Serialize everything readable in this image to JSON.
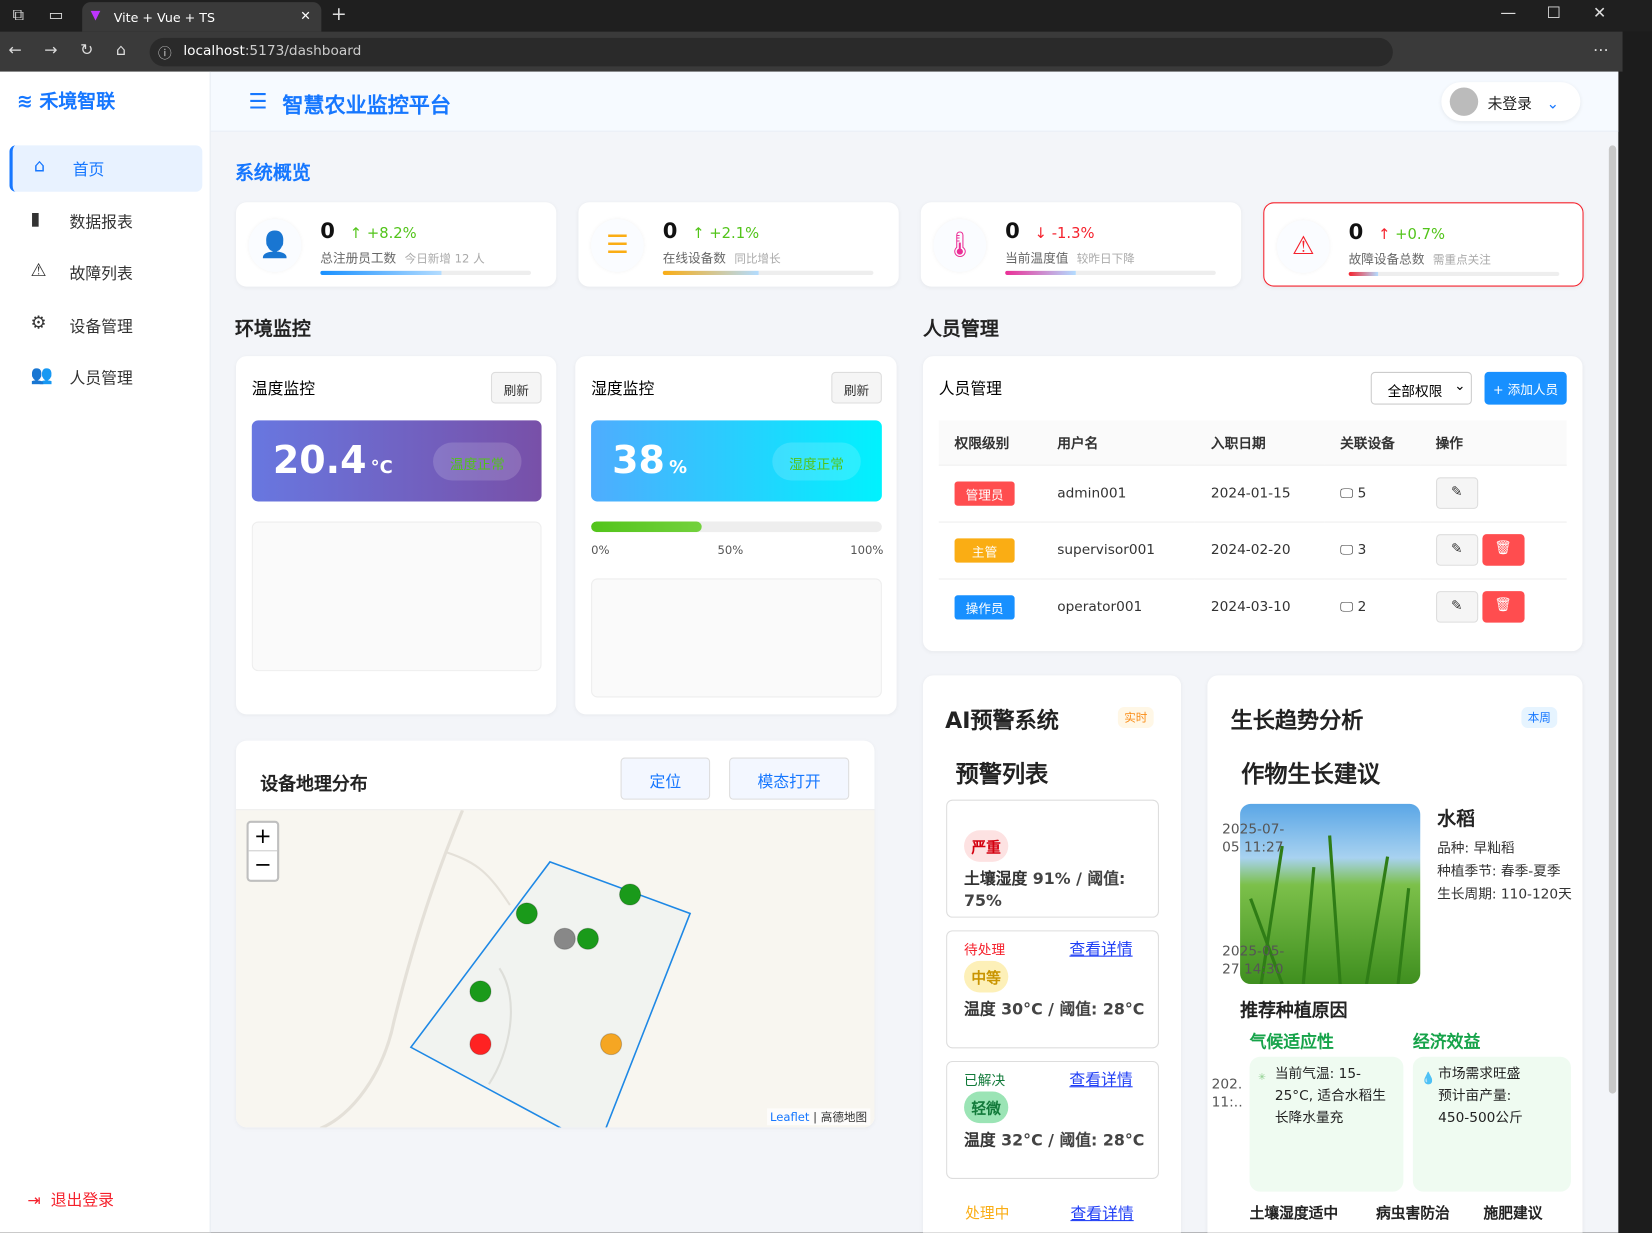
{
  "browser": {
    "tab_title": "Vite + Vue + TS",
    "url_host": "localhost",
    "url_path": ":5173/dashboard"
  },
  "sidebar": {
    "brand": "禾境智联",
    "items": [
      {
        "label": "首页",
        "icon": "home-icon"
      },
      {
        "label": "数据报表",
        "icon": "bar-chart-icon"
      },
      {
        "label": "故障列表",
        "icon": "warning-icon"
      },
      {
        "label": "设备管理",
        "icon": "gear-icon"
      },
      {
        "label": "人员管理",
        "icon": "users-icon"
      }
    ],
    "logout": "退出登录"
  },
  "header": {
    "title": "智慧农业监控平台",
    "user": "未登录"
  },
  "overview": {
    "title": "系统概览",
    "stats": [
      {
        "value": "0",
        "trend": "+8.2%",
        "dir": "up",
        "label": "总注册员工数",
        "sub": "今日新增 12 人",
        "progress": 0.82,
        "color": "#1890ff"
      },
      {
        "value": "0",
        "trend": "+2.1%",
        "dir": "up",
        "label": "在线设备数",
        "sub": "同比增长",
        "progress": 0.65,
        "color": "#faad14"
      },
      {
        "value": "0",
        "trend": "-1.3%",
        "dir": "down",
        "label": "当前温度值",
        "sub": "较昨日下降",
        "progress": 0.48,
        "color": "#eb2f96"
      },
      {
        "value": "0",
        "trend": "+0.7%",
        "dir": "up",
        "label": "故障设备总数",
        "sub": "需重点关注",
        "progress": 0.2,
        "color": "#f5222d"
      }
    ]
  },
  "env": {
    "title": "环境监控",
    "temp": {
      "title": "温度监控",
      "refresh": "刷新",
      "value": "20.4",
      "unit": "°C",
      "status": "温度正常"
    },
    "hum": {
      "title": "湿度监控",
      "refresh": "刷新",
      "value": "38",
      "unit": "%",
      "status": "湿度正常",
      "progress": 0.38,
      "ticks": [
        "0%",
        "50%",
        "100%"
      ]
    }
  },
  "map": {
    "title": "设备地理分布",
    "locate": "定位",
    "modal": "模态打开",
    "zoom_in": "+",
    "zoom_out": "−",
    "attribution_leaflet": "Leaflet",
    "attribution_src": "高德地图",
    "markers": [
      {
        "status": "online",
        "color": "#1a9a1a"
      },
      {
        "status": "online",
        "color": "#1a9a1a"
      },
      {
        "status": "online",
        "color": "#1a9a1a"
      },
      {
        "status": "online",
        "color": "#1a9a1a"
      },
      {
        "status": "offline",
        "color": "#888888"
      },
      {
        "status": "fault",
        "color": "#f22"
      },
      {
        "status": "warning",
        "color": "#f5a623"
      }
    ]
  },
  "staff": {
    "section_title": "人员管理",
    "title": "人员管理",
    "filter": "全部权限",
    "add": "+ 添加人员",
    "columns": [
      "权限级别",
      "用户名",
      "入职日期",
      "关联设备",
      "操作"
    ],
    "rows": [
      {
        "role": "管理员",
        "role_color": "#ff4d4f",
        "user": "admin001",
        "date": "2024-01-15",
        "devices": "5"
      },
      {
        "role": "主管",
        "role_color": "#faad14",
        "user": "supervisor001",
        "date": "2024-02-20",
        "devices": "3"
      },
      {
        "role": "操作员",
        "role_color": "#1890ff",
        "user": "operator001",
        "date": "2024-03-10",
        "devices": "2"
      }
    ]
  },
  "ai": {
    "title": "AI预警系统",
    "badge": "实时",
    "list_title": "预警列表",
    "detail": "查看详情",
    "alerts": [
      {
        "level": "严重",
        "metric": "土壤湿度",
        "value": "91% / 阈值: 75%",
        "status": ""
      },
      {
        "level": "中等",
        "metric": "温度",
        "value": "30°C / 阈值: 28°C",
        "status": "待处理"
      },
      {
        "level": "轻微",
        "metric": "温度",
        "value": "32°C / 阈值: 28°C",
        "status": "已解决"
      }
    ],
    "footer_status": "处理中"
  },
  "growth": {
    "title": "生长趋势分析",
    "badge": "本周",
    "subtitle": "作物生长建议",
    "crop": "水稻",
    "variety_label": "品种:",
    "variety": "早籼稻",
    "season_label": "种植季节:",
    "season": "春季-夏季",
    "cycle_label": "生长周期:",
    "cycle": "110-120天",
    "times": [
      "2025-07-05 11:27",
      "2025-05-27 14:30",
      "202… 11:…"
    ],
    "reason_title": "推荐种植原因",
    "climate_title": "气候适应性",
    "climate_text": "当前气温: 15-25°C, 适合水稻生长降水量充",
    "econ_title": "经济效益",
    "econ_text": "市场需求旺盛",
    "yield_label": "预计亩产量:",
    "yield": "450-500公斤",
    "soil": "土壤湿度适中",
    "pest": "病虫害防治",
    "fert": "施肥建议"
  }
}
